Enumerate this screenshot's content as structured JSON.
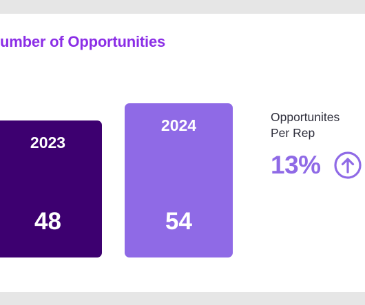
{
  "title": "umber of Opportunities",
  "chart_data": {
    "type": "bar",
    "title": "umber of Opportunities",
    "categories": [
      "2023",
      "2024"
    ],
    "values": [
      48,
      54
    ],
    "colors": [
      "#3d0070",
      "#8f6ae6"
    ]
  },
  "kpi": {
    "label_line1": "Opportunites",
    "label_line2": "Per Rep",
    "value": "13%",
    "trend_icon": "arrow-up-circle-icon",
    "color": "#8f6ae6"
  },
  "colors": {
    "title": "#8b2ee6",
    "background": "#e6e6e6",
    "card": "#ffffff"
  }
}
